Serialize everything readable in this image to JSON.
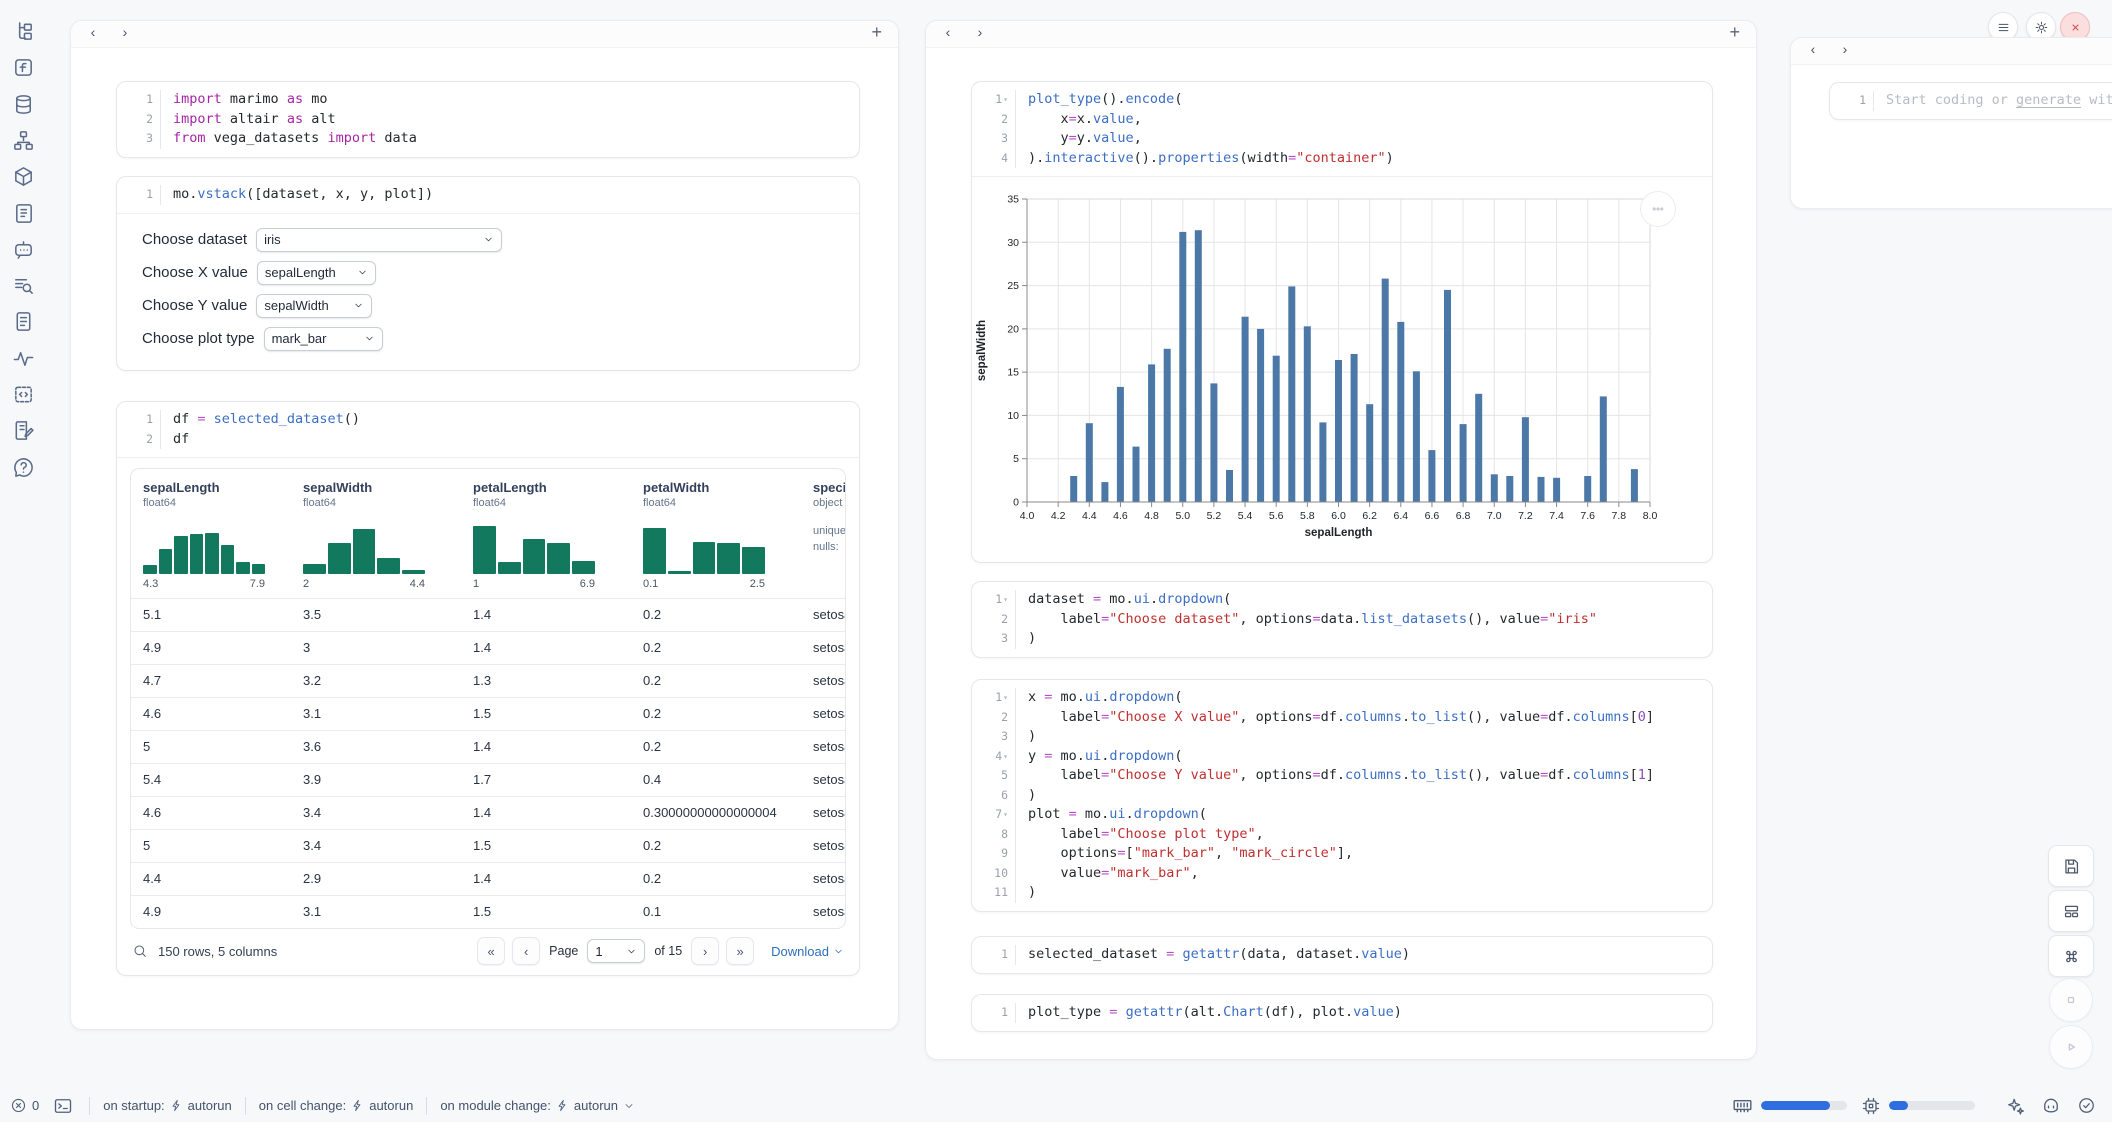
{
  "glyphs": {
    "back": "‹",
    "forward": "›",
    "add": "+",
    "first": "«",
    "prev": "‹",
    "next": "›",
    "last": "»"
  },
  "colors": {
    "accent": "#2f6ee0",
    "chart_bar": "#4c78a8",
    "histogram": "#12795e",
    "error_red": "#cf4b4b"
  },
  "sidebar": {
    "icons": [
      "file-tree-icon",
      "function-icon",
      "database-icon",
      "org-chart-icon",
      "package-icon",
      "script-icon",
      "chat-bot-icon",
      "search-list-icon",
      "document-icon",
      "activity-icon",
      "snippets-icon",
      "scratchpad-icon",
      "help-icon"
    ]
  },
  "left_panel": {
    "cells": [
      {
        "name": "imports",
        "lines": [
          [
            [
              "kw",
              "import"
            ],
            [
              "pl",
              " marimo "
            ],
            [
              "kw",
              "as"
            ],
            [
              "pl",
              " mo"
            ]
          ],
          [
            [
              "kw",
              "import"
            ],
            [
              "pl",
              " altair "
            ],
            [
              "kw",
              "as"
            ],
            [
              "pl",
              " alt"
            ]
          ],
          [
            [
              "kw",
              "from"
            ],
            [
              "pl",
              " vega_datasets "
            ],
            [
              "kw",
              "import"
            ],
            [
              "pl",
              " data"
            ]
          ]
        ]
      },
      {
        "name": "controls",
        "lines": [
          [
            [
              "pl",
              "mo."
            ],
            [
              "fn",
              "vstack"
            ],
            [
              "pl",
              "([dataset, x, y, plot])"
            ]
          ]
        ],
        "dropdowns": [
          {
            "label": "Choose dataset",
            "value": "iris"
          },
          {
            "label": "Choose X value",
            "value": "sepalLength"
          },
          {
            "label": "Choose Y value",
            "value": "sepalWidth"
          },
          {
            "label": "Choose plot type",
            "value": "mark_bar"
          }
        ]
      },
      {
        "name": "dataframe",
        "lines": [
          [
            [
              "pl",
              "df "
            ],
            [
              "op",
              "="
            ],
            [
              "pl",
              " "
            ],
            [
              "fn",
              "selected_dataset"
            ],
            [
              "pl",
              "()"
            ]
          ],
          [
            [
              "pl",
              "df"
            ]
          ]
        ]
      }
    ]
  },
  "table": {
    "columns": [
      {
        "name": "sepalLength",
        "type": "float64",
        "hist": [
          0.16,
          0.44,
          0.68,
          0.71,
          0.74,
          0.52,
          0.22,
          0.18
        ],
        "min": "4.3",
        "max": "7.9"
      },
      {
        "name": "sepalWidth",
        "type": "float64",
        "hist": [
          0.17,
          0.55,
          0.8,
          0.29,
          0.07
        ],
        "min": "2",
        "max": "4.4"
      },
      {
        "name": "petalLength",
        "type": "float64",
        "hist": [
          0.85,
          0.22,
          0.63,
          0.55,
          0.23
        ],
        "min": "1",
        "max": "6.9"
      },
      {
        "name": "petalWidth",
        "type": "float64",
        "hist": [
          0.82,
          0.05,
          0.58,
          0.56,
          0.48
        ],
        "min": "0.1",
        "max": "2.5"
      },
      {
        "name": "species",
        "type": "object",
        "meta": [
          "unique",
          "nulls:"
        ]
      }
    ],
    "rows": [
      [
        "5.1",
        "3.5",
        "1.4",
        "0.2",
        "setosa"
      ],
      [
        "4.9",
        "3",
        "1.4",
        "0.2",
        "setosa"
      ],
      [
        "4.7",
        "3.2",
        "1.3",
        "0.2",
        "setosa"
      ],
      [
        "4.6",
        "3.1",
        "1.5",
        "0.2",
        "setosa"
      ],
      [
        "5",
        "3.6",
        "1.4",
        "0.2",
        "setosa"
      ],
      [
        "5.4",
        "3.9",
        "1.7",
        "0.4",
        "setosa"
      ],
      [
        "4.6",
        "3.4",
        "1.4",
        "0.30000000000000004",
        "setosa"
      ],
      [
        "5",
        "3.4",
        "1.5",
        "0.2",
        "setosa"
      ],
      [
        "4.4",
        "2.9",
        "1.4",
        "0.2",
        "setosa"
      ],
      [
        "4.9",
        "3.1",
        "1.5",
        "0.1",
        "setosa"
      ]
    ],
    "footer": {
      "summary": "150 rows, 5 columns",
      "page_label": "Page",
      "page": "1",
      "total_pages_label": "of 15",
      "download_label": "Download"
    }
  },
  "middle_panel": {
    "cells": [
      {
        "name": "chart-cell",
        "fold_lines": [
          1
        ],
        "lines": [
          [
            [
              "fn",
              "plot_type"
            ],
            [
              "pl",
              "()."
            ],
            [
              "fn",
              "encode"
            ],
            [
              "pl",
              "("
            ]
          ],
          [
            [
              "pl",
              "    x"
            ],
            [
              "op",
              "="
            ],
            [
              "pl",
              "x."
            ],
            [
              "fn",
              "value"
            ],
            [
              "pl",
              ","
            ]
          ],
          [
            [
              "pl",
              "    y"
            ],
            [
              "op",
              "="
            ],
            [
              "pl",
              "y."
            ],
            [
              "fn",
              "value"
            ],
            [
              "pl",
              ","
            ]
          ],
          [
            [
              "pl",
              ")."
            ],
            [
              "fn",
              "interactive"
            ],
            [
              "pl",
              "()."
            ],
            [
              "fn",
              "properties"
            ],
            [
              "pl",
              "(width"
            ],
            [
              "op",
              "="
            ],
            [
              "st",
              "\"container\""
            ],
            [
              "pl",
              ")"
            ]
          ]
        ]
      },
      {
        "name": "dataset-dropdown",
        "fold_lines": [
          1
        ],
        "lines": [
          [
            [
              "pl",
              "dataset "
            ],
            [
              "op",
              "="
            ],
            [
              "pl",
              " mo."
            ],
            [
              "fn",
              "ui"
            ],
            [
              "pl",
              "."
            ],
            [
              "fn",
              "dropdown"
            ],
            [
              "pl",
              "("
            ]
          ],
          [
            [
              "pl",
              "    label"
            ],
            [
              "op",
              "="
            ],
            [
              "st",
              "\"Choose dataset\""
            ],
            [
              "pl",
              ", options"
            ],
            [
              "op",
              "="
            ],
            [
              "pl",
              "data."
            ],
            [
              "fn",
              "list_datasets"
            ],
            [
              "pl",
              "(), value"
            ],
            [
              "op",
              "="
            ],
            [
              "st",
              "\"iris\""
            ]
          ],
          [
            [
              "pl",
              ")"
            ]
          ]
        ]
      },
      {
        "name": "xy-plot-dropdowns",
        "fold_lines": [
          1,
          4,
          7
        ],
        "lines": [
          [
            [
              "pl",
              "x "
            ],
            [
              "op",
              "="
            ],
            [
              "pl",
              " mo."
            ],
            [
              "fn",
              "ui"
            ],
            [
              "pl",
              "."
            ],
            [
              "fn",
              "dropdown"
            ],
            [
              "pl",
              "("
            ]
          ],
          [
            [
              "pl",
              "    label"
            ],
            [
              "op",
              "="
            ],
            [
              "st",
              "\"Choose X value\""
            ],
            [
              "pl",
              ", options"
            ],
            [
              "op",
              "="
            ],
            [
              "pl",
              "df."
            ],
            [
              "fn",
              "columns"
            ],
            [
              "pl",
              "."
            ],
            [
              "fn",
              "to_list"
            ],
            [
              "pl",
              "(), value"
            ],
            [
              "op",
              "="
            ],
            [
              "pl",
              "df."
            ],
            [
              "fn",
              "columns"
            ],
            [
              "pl",
              "["
            ],
            [
              "num",
              "0"
            ],
            [
              "pl",
              "]"
            ]
          ],
          [
            [
              "pl",
              ")"
            ]
          ],
          [
            [
              "pl",
              "y "
            ],
            [
              "op",
              "="
            ],
            [
              "pl",
              " mo."
            ],
            [
              "fn",
              "ui"
            ],
            [
              "pl",
              "."
            ],
            [
              "fn",
              "dropdown"
            ],
            [
              "pl",
              "("
            ]
          ],
          [
            [
              "pl",
              "    label"
            ],
            [
              "op",
              "="
            ],
            [
              "st",
              "\"Choose Y value\""
            ],
            [
              "pl",
              ", options"
            ],
            [
              "op",
              "="
            ],
            [
              "pl",
              "df."
            ],
            [
              "fn",
              "columns"
            ],
            [
              "pl",
              "."
            ],
            [
              "fn",
              "to_list"
            ],
            [
              "pl",
              "(), value"
            ],
            [
              "op",
              "="
            ],
            [
              "pl",
              "df."
            ],
            [
              "fn",
              "columns"
            ],
            [
              "pl",
              "["
            ],
            [
              "num",
              "1"
            ],
            [
              "pl",
              "]"
            ]
          ],
          [
            [
              "pl",
              ")"
            ]
          ],
          [
            [
              "pl",
              "plot "
            ],
            [
              "op",
              "="
            ],
            [
              "pl",
              " mo."
            ],
            [
              "fn",
              "ui"
            ],
            [
              "pl",
              "."
            ],
            [
              "fn",
              "dropdown"
            ],
            [
              "pl",
              "("
            ]
          ],
          [
            [
              "pl",
              "    label"
            ],
            [
              "op",
              "="
            ],
            [
              "st",
              "\"Choose plot type\""
            ],
            [
              "pl",
              ","
            ]
          ],
          [
            [
              "pl",
              "    options"
            ],
            [
              "op",
              "="
            ],
            [
              "pl",
              "["
            ],
            [
              "st",
              "\"mark_bar\""
            ],
            [
              "pl",
              ", "
            ],
            [
              "st",
              "\"mark_circle\""
            ],
            [
              "pl",
              "],"
            ]
          ],
          [
            [
              "pl",
              "    value"
            ],
            [
              "op",
              "="
            ],
            [
              "st",
              "\"mark_bar\""
            ],
            [
              "pl",
              ","
            ]
          ],
          [
            [
              "pl",
              ")"
            ]
          ]
        ]
      },
      {
        "name": "selected-dataset",
        "lines": [
          [
            [
              "pl",
              "selected_dataset "
            ],
            [
              "op",
              "="
            ],
            [
              "pl",
              " "
            ],
            [
              "fn",
              "getattr"
            ],
            [
              "pl",
              "(data, dataset."
            ],
            [
              "fn",
              "value"
            ],
            [
              "pl",
              ")"
            ]
          ]
        ]
      },
      {
        "name": "plot-type",
        "lines": [
          [
            [
              "pl",
              "plot_type "
            ],
            [
              "op",
              "="
            ],
            [
              "pl",
              " "
            ],
            [
              "fn",
              "getattr"
            ],
            [
              "pl",
              "(alt."
            ],
            [
              "fn",
              "Chart"
            ],
            [
              "pl",
              "(df), plot."
            ],
            [
              "fn",
              "value"
            ],
            [
              "pl",
              ")"
            ]
          ]
        ]
      }
    ]
  },
  "chart_data": {
    "type": "bar",
    "title": "",
    "xlabel": "sepalLength",
    "ylabel": "sepalWidth",
    "xlim": [
      4.0,
      8.0
    ],
    "ylim": [
      0,
      35
    ],
    "x_tick_step": 0.2,
    "y_tick_step": 5,
    "grid": true,
    "bar_color": "#4c78a8",
    "x": [
      4.3,
      4.4,
      4.5,
      4.6,
      4.7,
      4.8,
      4.9,
      5.0,
      5.1,
      5.2,
      5.3,
      5.4,
      5.5,
      5.6,
      5.7,
      5.8,
      5.9,
      6.0,
      6.1,
      6.2,
      6.3,
      6.4,
      6.5,
      6.6,
      6.7,
      6.8,
      6.9,
      7.0,
      7.1,
      7.2,
      7.3,
      7.4,
      7.6,
      7.7,
      7.9
    ],
    "values": [
      3.0,
      9.1,
      2.3,
      13.3,
      6.4,
      15.9,
      17.7,
      31.2,
      31.4,
      13.7,
      3.7,
      21.4,
      20.0,
      16.9,
      24.9,
      20.3,
      9.2,
      16.4,
      17.1,
      11.3,
      25.8,
      20.8,
      15.1,
      6.0,
      24.5,
      9.0,
      12.5,
      3.2,
      3.0,
      9.8,
      2.9,
      2.8,
      3.0,
      12.2,
      3.8
    ]
  },
  "right_panel": {
    "line_number": "1",
    "placeholder_prefix": "Start coding or ",
    "placeholder_link": "generate",
    "placeholder_suffix": " with AI"
  },
  "status_bar": {
    "error_count": "0",
    "items": [
      {
        "label": "on startup:",
        "value": "autorun"
      },
      {
        "label": "on cell change:",
        "value": "autorun"
      },
      {
        "label": "on module change:",
        "value": "autorun"
      }
    ],
    "memory_percent": 80,
    "cpu_percent": 22
  }
}
